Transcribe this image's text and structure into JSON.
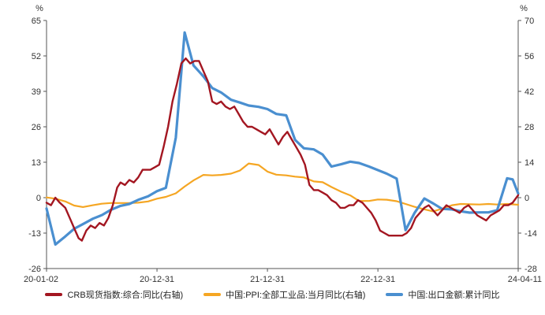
{
  "chart_data": {
    "type": "line",
    "title": "",
    "left_axis": {
      "unit": "%",
      "ylim": [
        -26,
        65
      ],
      "ticks": [
        -26,
        -13,
        0,
        13,
        26,
        39,
        52,
        65
      ]
    },
    "right_axis": {
      "unit": "%",
      "ylim": [
        -28,
        70
      ],
      "ticks": [
        -28,
        -14,
        0,
        14,
        28,
        42,
        56,
        70
      ]
    },
    "x_ticks": [
      {
        "label": "20-01-02",
        "t": 0
      },
      {
        "label": "20-12-31",
        "t": 1
      },
      {
        "label": "21-12-31",
        "t": 2
      },
      {
        "label": "22-12-31",
        "t": 3
      },
      {
        "label": "24-04-11",
        "t": 4.27
      }
    ],
    "xlim": [
      0,
      4.27
    ],
    "series": [
      {
        "name": "CRB现货指数:综合:同比(右轴)",
        "color": "#a31621",
        "axis": "right",
        "points": [
          [
            0,
            -2
          ],
          [
            0.04,
            -3
          ],
          [
            0.08,
            0
          ],
          [
            0.12,
            -2
          ],
          [
            0.17,
            -4
          ],
          [
            0.21,
            -8
          ],
          [
            0.25,
            -12
          ],
          [
            0.29,
            -16
          ],
          [
            0.32,
            -17
          ],
          [
            0.36,
            -13
          ],
          [
            0.4,
            -11
          ],
          [
            0.44,
            -12
          ],
          [
            0.48,
            -10
          ],
          [
            0.52,
            -11
          ],
          [
            0.56,
            -8
          ],
          [
            0.6,
            -3
          ],
          [
            0.64,
            4
          ],
          [
            0.67,
            6
          ],
          [
            0.71,
            5
          ],
          [
            0.75,
            7
          ],
          [
            0.79,
            6
          ],
          [
            0.83,
            8
          ],
          [
            0.87,
            11
          ],
          [
            0.9,
            11
          ],
          [
            0.94,
            11
          ],
          [
            0.98,
            12
          ],
          [
            1.02,
            13
          ],
          [
            1.06,
            20
          ],
          [
            1.1,
            28
          ],
          [
            1.14,
            38
          ],
          [
            1.18,
            45
          ],
          [
            1.22,
            53
          ],
          [
            1.26,
            55
          ],
          [
            1.3,
            53
          ],
          [
            1.34,
            54
          ],
          [
            1.38,
            54
          ],
          [
            1.42,
            50
          ],
          [
            1.46,
            46
          ],
          [
            1.5,
            38
          ],
          [
            1.54,
            37
          ],
          [
            1.58,
            38
          ],
          [
            1.62,
            36
          ],
          [
            1.66,
            35
          ],
          [
            1.7,
            36
          ],
          [
            1.74,
            33
          ],
          [
            1.78,
            30
          ],
          [
            1.82,
            28
          ],
          [
            1.86,
            28
          ],
          [
            1.9,
            27
          ],
          [
            1.94,
            26
          ],
          [
            1.98,
            25
          ],
          [
            2.02,
            27
          ],
          [
            2.06,
            24
          ],
          [
            2.1,
            21
          ],
          [
            2.14,
            24
          ],
          [
            2.18,
            26
          ],
          [
            2.22,
            23
          ],
          [
            2.26,
            20
          ],
          [
            2.3,
            17
          ],
          [
            2.34,
            13
          ],
          [
            2.38,
            5
          ],
          [
            2.42,
            3
          ],
          [
            2.46,
            3
          ],
          [
            2.5,
            2
          ],
          [
            2.54,
            1
          ],
          [
            2.58,
            -1
          ],
          [
            2.62,
            -2
          ],
          [
            2.66,
            -4
          ],
          [
            2.7,
            -4
          ],
          [
            2.74,
            -3
          ],
          [
            2.78,
            -3
          ],
          [
            2.82,
            -1
          ],
          [
            2.86,
            -2
          ],
          [
            2.9,
            -4
          ],
          [
            2.94,
            -6
          ],
          [
            2.98,
            -9
          ],
          [
            3.02,
            -13
          ],
          [
            3.06,
            -14
          ],
          [
            3.1,
            -15
          ],
          [
            3.14,
            -15
          ],
          [
            3.18,
            -15
          ],
          [
            3.22,
            -15
          ],
          [
            3.26,
            -14
          ],
          [
            3.3,
            -12
          ],
          [
            3.34,
            -8
          ],
          [
            3.38,
            -6
          ],
          [
            3.42,
            -4
          ],
          [
            3.46,
            -3
          ],
          [
            3.5,
            -5
          ],
          [
            3.54,
            -7
          ],
          [
            3.58,
            -5
          ],
          [
            3.62,
            -3
          ],
          [
            3.66,
            -4
          ],
          [
            3.7,
            -5
          ],
          [
            3.74,
            -6
          ],
          [
            3.78,
            -4
          ],
          [
            3.82,
            -3
          ],
          [
            3.86,
            -5
          ],
          [
            3.9,
            -7
          ],
          [
            3.94,
            -8
          ],
          [
            3.98,
            -9
          ],
          [
            4.02,
            -7
          ],
          [
            4.06,
            -6
          ],
          [
            4.1,
            -5
          ],
          [
            4.14,
            -3
          ],
          [
            4.18,
            -3
          ],
          [
            4.22,
            -2
          ],
          [
            4.27,
            1
          ]
        ]
      },
      {
        "name": "中国:PPI:全部工业品:当月同比(右轴)",
        "color": "#f5a623",
        "axis": "right",
        "points": [
          [
            0,
            0.1
          ],
          [
            0.08,
            -0.4
          ],
          [
            0.17,
            -1.5
          ],
          [
            0.25,
            -3.1
          ],
          [
            0.33,
            -3.7
          ],
          [
            0.42,
            -3.0
          ],
          [
            0.5,
            -2.4
          ],
          [
            0.58,
            -2.1
          ],
          [
            0.67,
            -2.1
          ],
          [
            0.75,
            -2.1
          ],
          [
            0.83,
            -2.0
          ],
          [
            0.92,
            -1.5
          ],
          [
            1.0,
            -0.4
          ],
          [
            1.08,
            0.3
          ],
          [
            1.17,
            1.7
          ],
          [
            1.25,
            4.4
          ],
          [
            1.33,
            6.8
          ],
          [
            1.42,
            9.0
          ],
          [
            1.5,
            8.8
          ],
          [
            1.58,
            9.0
          ],
          [
            1.67,
            9.5
          ],
          [
            1.75,
            10.7
          ],
          [
            1.83,
            13.5
          ],
          [
            1.92,
            12.9
          ],
          [
            2.0,
            10.3
          ],
          [
            2.08,
            9.1
          ],
          [
            2.17,
            8.8
          ],
          [
            2.25,
            8.3
          ],
          [
            2.33,
            8.0
          ],
          [
            2.42,
            6.4
          ],
          [
            2.5,
            6.1
          ],
          [
            2.58,
            4.2
          ],
          [
            2.67,
            2.3
          ],
          [
            2.75,
            0.9
          ],
          [
            2.83,
            -1.3
          ],
          [
            2.92,
            -1.3
          ],
          [
            3.0,
            -0.7
          ],
          [
            3.08,
            -0.8
          ],
          [
            3.17,
            -1.4
          ],
          [
            3.25,
            -2.5
          ],
          [
            3.33,
            -3.6
          ],
          [
            3.42,
            -4.6
          ],
          [
            3.5,
            -5.4
          ],
          [
            3.58,
            -4.4
          ],
          [
            3.67,
            -3.0
          ],
          [
            3.75,
            -2.5
          ],
          [
            3.83,
            -2.6
          ],
          [
            3.92,
            -2.7
          ],
          [
            4.0,
            -2.5
          ],
          [
            4.08,
            -2.7
          ],
          [
            4.17,
            -2.5
          ],
          [
            4.27,
            -2.8
          ]
        ]
      },
      {
        "name": "中国:出口金额:累计同比",
        "color": "#4a8fd0",
        "axis": "left",
        "points": [
          [
            0.0,
            -4
          ],
          [
            0.08,
            -17.2
          ],
          [
            0.17,
            -14.2
          ],
          [
            0.25,
            -11.4
          ],
          [
            0.33,
            -9.7
          ],
          [
            0.42,
            -7.7
          ],
          [
            0.5,
            -6.4
          ],
          [
            0.58,
            -4.5
          ],
          [
            0.67,
            -3.0
          ],
          [
            0.75,
            -2.3
          ],
          [
            0.83,
            -0.8
          ],
          [
            0.92,
            0.5
          ],
          [
            1.0,
            2.4
          ],
          [
            1.08,
            3.6
          ],
          [
            1.17,
            22
          ],
          [
            1.25,
            60.6
          ],
          [
            1.33,
            48.5
          ],
          [
            1.42,
            44.5
          ],
          [
            1.5,
            40.2
          ],
          [
            1.58,
            38.6
          ],
          [
            1.67,
            35.9
          ],
          [
            1.75,
            34.9
          ],
          [
            1.83,
            33.8
          ],
          [
            1.92,
            33.3
          ],
          [
            2.0,
            32.5
          ],
          [
            2.08,
            30.7
          ],
          [
            2.17,
            30.2
          ],
          [
            2.25,
            21.2
          ],
          [
            2.33,
            18.1
          ],
          [
            2.42,
            17.7
          ],
          [
            2.5,
            15.8
          ],
          [
            2.58,
            11.4
          ],
          [
            2.67,
            12.3
          ],
          [
            2.75,
            13.2
          ],
          [
            2.83,
            12.7
          ],
          [
            2.92,
            11.4
          ],
          [
            3.0,
            10.1
          ],
          [
            3.08,
            8.8
          ],
          [
            3.17,
            7.0
          ],
          [
            3.25,
            -11.9
          ],
          [
            3.33,
            -5.7
          ],
          [
            3.42,
            -0.3
          ],
          [
            3.5,
            -2.1
          ],
          [
            3.58,
            -4.1
          ],
          [
            3.67,
            -4.3
          ],
          [
            3.75,
            -5.0
          ],
          [
            3.83,
            -5.5
          ],
          [
            3.92,
            -5.4
          ],
          [
            4.0,
            -5.4
          ],
          [
            4.08,
            -4.6
          ],
          [
            4.17,
            7.1
          ],
          [
            4.22,
            6.7
          ],
          [
            4.27,
            1.5
          ]
        ]
      }
    ]
  }
}
